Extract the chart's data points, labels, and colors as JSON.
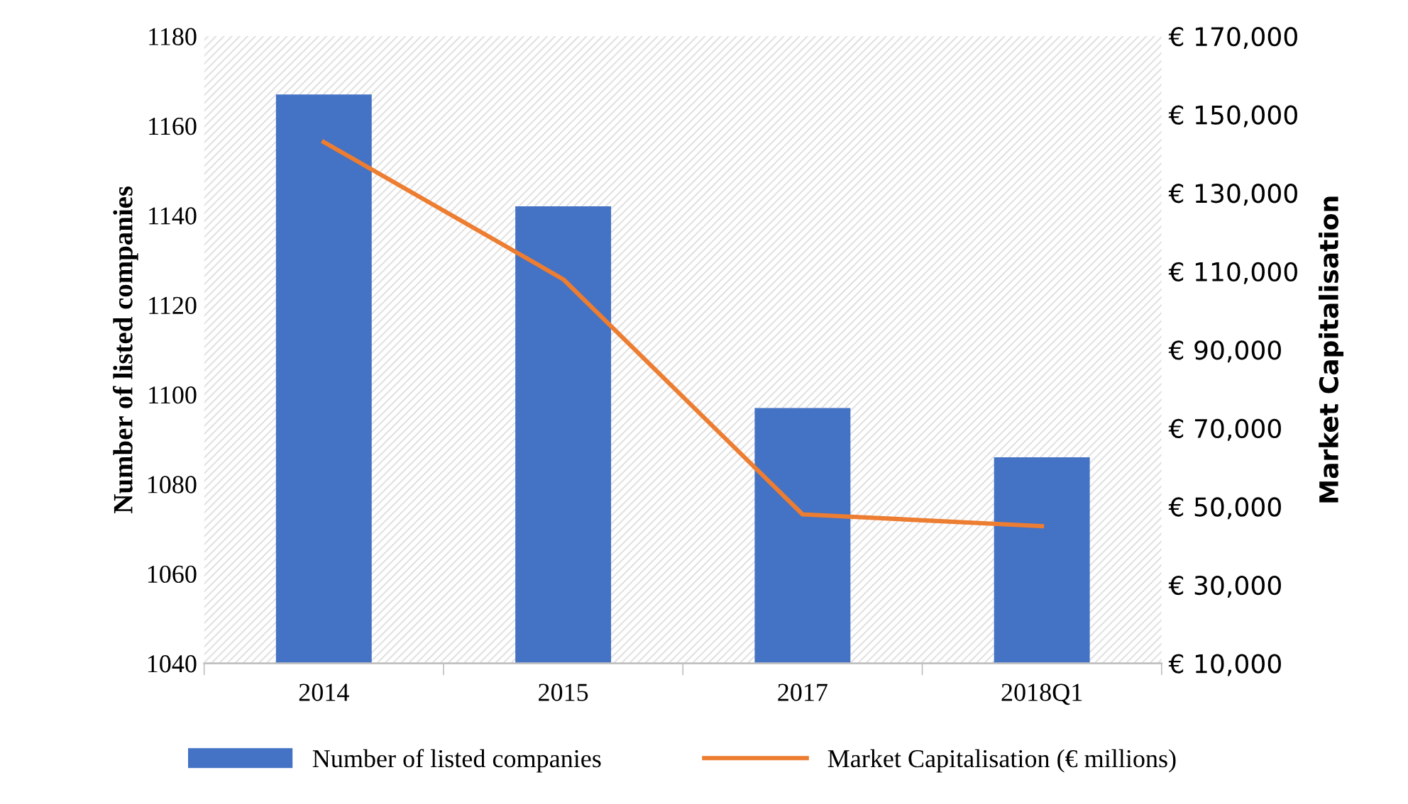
{
  "chart_data": {
    "type": "bar",
    "categories": [
      "2014",
      "2015",
      "2017",
      "2018Q1"
    ],
    "series": [
      {
        "name": "Number of listed companies",
        "color": "#4472c4",
        "values": [
          1167,
          1142,
          1097,
          1086
        ]
      },
      {
        "name": "Market Capitalisation (€ millions)",
        "type": "line",
        "axis": "y2",
        "color": "#ed7d31",
        "values": [
          143000,
          108000,
          48000,
          45000
        ]
      }
    ],
    "ylabel": "Number of listed companies",
    "y2label": "Market Capitalisation",
    "ylim": [
      1040,
      1180
    ],
    "yticks": [
      1040,
      1060,
      1080,
      1100,
      1120,
      1140,
      1160,
      1180
    ],
    "y2lim": [
      10000,
      170000
    ],
    "y2ticks": [
      {
        "value": 10000,
        "label": "€ 10,000"
      },
      {
        "value": 30000,
        "label": "€ 30,000"
      },
      {
        "value": 50000,
        "label": "€ 50,000"
      },
      {
        "value": 70000,
        "label": "€ 70,000"
      },
      {
        "value": 90000,
        "label": "€ 90,000"
      },
      {
        "value": 110000,
        "label": "€ 110,000"
      },
      {
        "value": 130000,
        "label": "€ 130,000"
      },
      {
        "value": 150000,
        "label": "€ 150,000"
      },
      {
        "value": 170000,
        "label": "€ 170,000"
      }
    ],
    "grid": false,
    "legend": "bottom",
    "marker": "none",
    "line_style": "solid"
  }
}
